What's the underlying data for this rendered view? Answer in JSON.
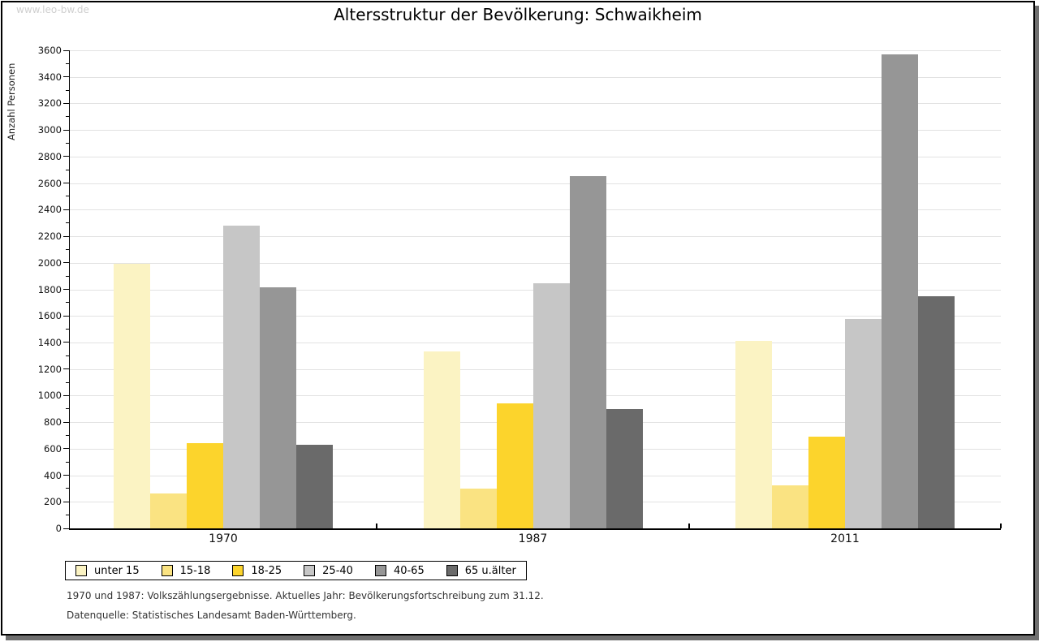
{
  "watermark": "www.leo-bw.de",
  "title": "Altersstruktur der Bevölkerung: Schwaikheim",
  "chart_data": {
    "type": "bar",
    "title": "Altersstruktur der Bevölkerung: Schwaikheim",
    "xlabel": "",
    "ylabel": "Anzahl Personen",
    "ylim": [
      0,
      3600
    ],
    "ytick_step": 200,
    "ytick_minor_step": 100,
    "grid": true,
    "legend_position": "bottom",
    "categories": [
      "1970",
      "1987",
      "2011"
    ],
    "series": [
      {
        "name": "unter 15",
        "color": "#FBF3C3",
        "values": [
          1990,
          1335,
          1410
        ]
      },
      {
        "name": "15-18",
        "color": "#FAE382",
        "values": [
          260,
          300,
          325
        ]
      },
      {
        "name": "18-25",
        "color": "#FCD42C",
        "values": [
          640,
          940,
          690
        ]
      },
      {
        "name": "25-40",
        "color": "#C6C6C6",
        "values": [
          2280,
          1845,
          1580
        ]
      },
      {
        "name": "40-65",
        "color": "#969696",
        "values": [
          1815,
          2655,
          3570
        ]
      },
      {
        "name": "65 u.älter",
        "color": "#6A6A6A",
        "values": [
          630,
          900,
          1750
        ]
      }
    ],
    "colors": {
      "axis": "#000000",
      "grid": "#E2E2E2",
      "shadow": "#6F6F6F",
      "watermark": "#CFCFCF"
    }
  },
  "footnotes": {
    "line1": "1970 und 1987: Volkszählungsergebnisse. Aktuelles Jahr: Bevölkerungsfortschreibung zum 31.12.",
    "line2": "Datenquelle: Statistisches Landesamt Baden-Württemberg."
  }
}
